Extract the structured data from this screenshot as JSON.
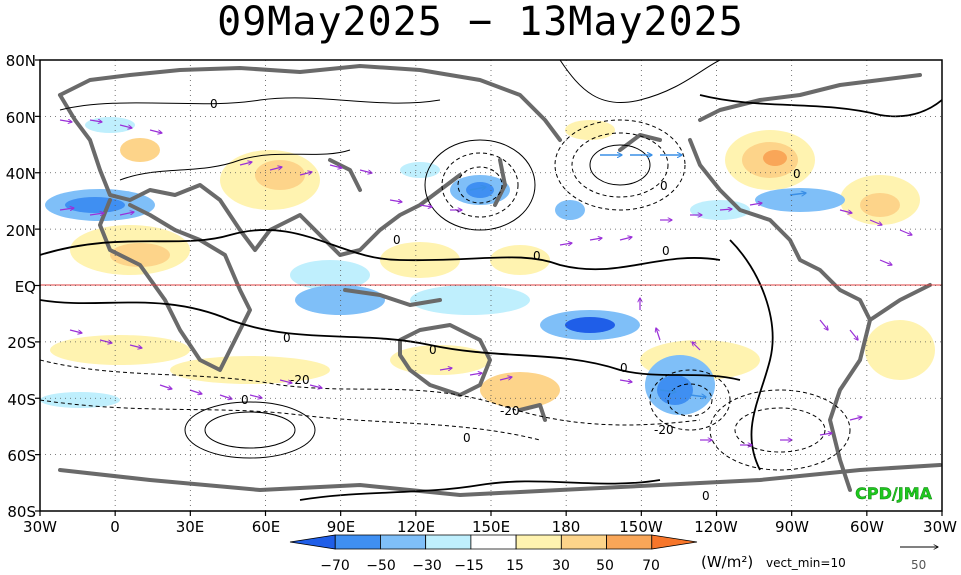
{
  "title": "09May2025 − 13May2025",
  "lat_labels": [
    "80N",
    "60N",
    "40N",
    "20N",
    "EQ",
    "20S",
    "40S",
    "60S",
    "80S"
  ],
  "lon_labels": [
    "30W",
    "0",
    "30E",
    "60E",
    "90E",
    "120E",
    "150E",
    "180",
    "150W",
    "120W",
    "90W",
    "60W",
    "30W"
  ],
  "contour_labels": [
    "0",
    "0",
    "0",
    "0",
    "0",
    "0",
    "0",
    "0",
    "0",
    "0",
    "0",
    "-20",
    "-20",
    "-20",
    "0"
  ],
  "credit": "CPD/JMA",
  "colorbar": {
    "ticks": [
      "−70",
      "−50",
      "−30",
      "−15",
      "15",
      "30",
      "50",
      "70"
    ],
    "colors": [
      "#1f5ee8",
      "#3f8ff2",
      "#7fbff8",
      "#bfeffd",
      "#ffffff",
      "#fff3b0",
      "#fdd48a",
      "#f9a658",
      "#f7762a"
    ],
    "unit": "(W/m²)",
    "note": "vect_min=10"
  },
  "reference_vector": {
    "label": "50"
  },
  "colors": {
    "frame": "#000000",
    "coast": "#6a6a6a",
    "equator": "#e04040",
    "vector": "#9a30d8",
    "vector_strong": "#3a8fe6",
    "credit": "#1ec81e"
  }
}
